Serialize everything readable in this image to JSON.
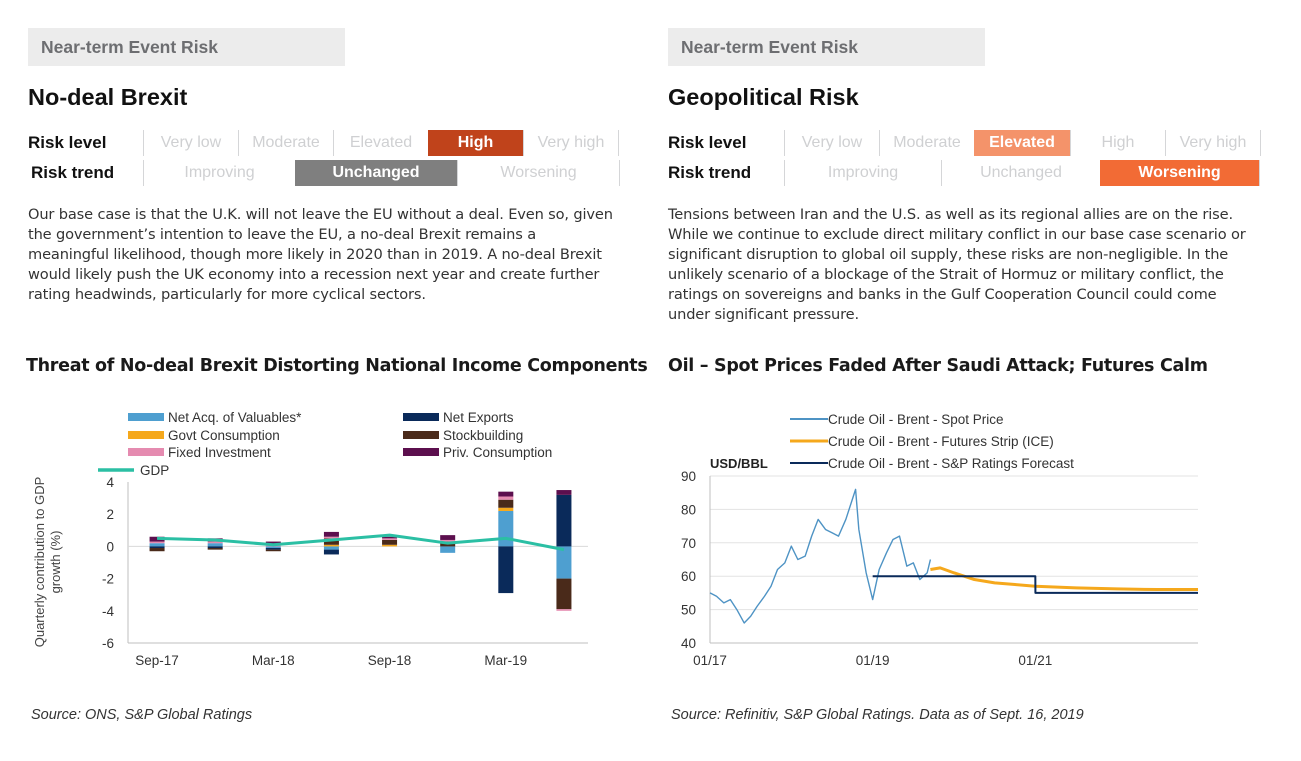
{
  "left_panel": {
    "tag": "Near-term Event Risk",
    "title": "No-deal Brexit",
    "risk_level": {
      "label": "Risk level",
      "options": [
        "Very low",
        "Moderate",
        "Elevated",
        "High",
        "Very high"
      ],
      "selected": "High",
      "selected_color": "#c0431b"
    },
    "risk_trend": {
      "label": "Risk trend",
      "options": [
        "Improving",
        "Unchanged",
        "Worsening"
      ],
      "selected": "Unchanged",
      "selected_color": "#7f7f7f"
    },
    "body": "Our base case is that the U.K. will not leave the EU without a deal. Even so, given the government’s intention to leave the EU, a no-deal Brexit remains a meaningful likelihood, though more likely in 2020 than in 2019. A no-deal Brexit would likely push the UK economy into a recession next year and create further rating headwinds, particularly for more cyclical sectors.",
    "chart_title": "Threat of No-deal Brexit Distorting National Income Components",
    "source": "Source: ONS, S&P Global Ratings"
  },
  "right_panel": {
    "tag": "Near-term Event Risk",
    "title": "Geopolitical Risk",
    "risk_level": {
      "label": "Risk level",
      "options": [
        "Very low",
        "Moderate",
        "Elevated",
        "High",
        "Very high"
      ],
      "selected": "Elevated",
      "selected_color": "#f4936a"
    },
    "risk_trend": {
      "label": "Risk trend",
      "options": [
        "Improving",
        "Unchanged",
        "Worsening"
      ],
      "selected": "Worsening",
      "selected_color": "#f26b35"
    },
    "body": "Tensions between Iran and the U.S. as well as its regional allies are on the rise. While we continue to exclude direct military conflict in our base case scenario or significant disruption to global oil supply, these risks are non-negligible. In the unlikely scenario of a blockage of the Strait of Hormuz or military conflict, the ratings on sovereigns and banks in the Gulf Cooperation Council could come under significant pressure.",
    "chart_title": "Oil – Spot Prices Faded After Saudi Attack; Futures Calm",
    "source": "Source: Refinitiv, S&P Global Ratings. Data as of  Sept. 16, 2019"
  },
  "chart_data": [
    {
      "type": "bar",
      "stacked": true,
      "title": "",
      "ylabel": "Quarterly contribution to GDP growth (%)",
      "ylim": [
        -6,
        4
      ],
      "yticks": [
        -6,
        -4,
        -2,
        0,
        2,
        4
      ],
      "categories": [
        "Q3-17",
        "Q4-17",
        "Q1-18",
        "Q2-18",
        "Q3-18",
        "Q4-18",
        "Q1-19",
        "Q2-19"
      ],
      "xtick_labels": [
        {
          "category": "Q3-17",
          "label": "Sep-17"
        },
        {
          "category": "Q1-18",
          "label": "Mar-18"
        },
        {
          "category": "Q3-18",
          "label": "Sep-18"
        },
        {
          "category": "Q1-19",
          "label": "Mar-19"
        }
      ],
      "series": [
        {
          "name": "Net Acq. of Valuables*",
          "color": "#4e9fd0",
          "values": [
            0.2,
            0.2,
            -0.1,
            -0.2,
            0.0,
            -0.4,
            2.2,
            -2.0
          ]
        },
        {
          "name": "Net Exports",
          "color": "#0a2a5a",
          "values": [
            -0.1,
            -0.1,
            -0.1,
            -0.3,
            0.0,
            0.0,
            -2.9,
            3.2
          ]
        },
        {
          "name": "Govt Consumption",
          "color": "#f5a81c",
          "values": [
            0.0,
            0.0,
            0.0,
            0.1,
            0.1,
            0.0,
            0.2,
            0.0
          ]
        },
        {
          "name": "Stockbuilding",
          "color": "#4a2a1a",
          "values": [
            -0.2,
            -0.1,
            -0.1,
            0.4,
            0.3,
            0.3,
            0.5,
            -1.9
          ]
        },
        {
          "name": "Fixed Investment",
          "color": "#e58bb0",
          "values": [
            0.1,
            0.1,
            0.1,
            0.1,
            0.1,
            0.1,
            0.2,
            -0.1
          ]
        },
        {
          "name": "Priv. Consumption",
          "color": "#5c0f4e",
          "values": [
            0.3,
            0.2,
            0.2,
            0.3,
            0.1,
            0.3,
            0.3,
            0.3
          ]
        }
      ],
      "line": {
        "name": "GDP",
        "color": "#2bbfa4",
        "values": [
          0.5,
          0.4,
          0.1,
          0.4,
          0.7,
          0.2,
          0.5,
          -0.2
        ]
      },
      "legend_position": "top"
    },
    {
      "type": "line",
      "title": "",
      "ylabel": "USD/BBL",
      "ylim": [
        40,
        90
      ],
      "yticks": [
        40,
        50,
        60,
        70,
        80,
        90
      ],
      "xlim": [
        2017.0,
        2023.0
      ],
      "xticks": [
        {
          "x": 2017.0,
          "label": "01/17"
        },
        {
          "x": 2019.0,
          "label": "01/19"
        },
        {
          "x": 2021.0,
          "label": "01/21"
        }
      ],
      "grid": "y",
      "legend_position": "top",
      "series": [
        {
          "name": "Crude Oil - Brent - Spot Price",
          "color": "#4e93c4",
          "x": [
            2017.0,
            2017.08,
            2017.17,
            2017.25,
            2017.33,
            2017.42,
            2017.5,
            2017.58,
            2017.67,
            2017.75,
            2017.83,
            2017.92,
            2018.0,
            2018.08,
            2018.17,
            2018.25,
            2018.33,
            2018.42,
            2018.5,
            2018.58,
            2018.67,
            2018.75,
            2018.79,
            2018.83,
            2018.92,
            2019.0,
            2019.08,
            2019.17,
            2019.25,
            2019.33,
            2019.42,
            2019.5,
            2019.58,
            2019.67,
            2019.71
          ],
          "y": [
            55,
            54,
            52,
            53,
            50,
            46,
            48,
            51,
            54,
            57,
            62,
            64,
            69,
            65,
            66,
            72,
            77,
            74,
            73,
            72,
            77,
            83,
            86,
            74,
            61,
            53,
            62,
            67,
            71,
            72,
            63,
            64,
            59,
            61,
            65
          ]
        },
        {
          "name": "Crude Oil - Brent - Futures Strip (ICE)",
          "color": "#f5a81c",
          "x": [
            2019.71,
            2019.83,
            2020.0,
            2020.25,
            2020.5,
            2020.75,
            2021.0,
            2021.5,
            2022.0,
            2022.5,
            2023.0
          ],
          "y": [
            62,
            62.5,
            61,
            59,
            58,
            57.5,
            57,
            56.5,
            56.2,
            56,
            56
          ]
        },
        {
          "name": "Crude Oil - Brent - S&P Ratings Forecast",
          "color": "#0a2a5a",
          "x": [
            2019.0,
            2020.0,
            2020.001,
            2021.0,
            2021.001,
            2023.0
          ],
          "y": [
            60,
            60,
            60,
            60,
            55,
            55
          ]
        }
      ]
    }
  ]
}
